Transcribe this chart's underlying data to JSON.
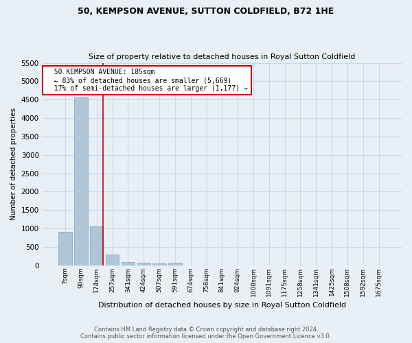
{
  "title": "50, KEMPSON AVENUE, SUTTON COLDFIELD, B72 1HE",
  "subtitle": "Size of property relative to detached houses in Royal Sutton Coldfield",
  "xlabel": "Distribution of detached houses by size in Royal Sutton Coldfield",
  "ylabel": "Number of detached properties",
  "footer_line1": "Contains HM Land Registry data © Crown copyright and database right 2024.",
  "footer_line2": "Contains public sector information licensed under the Open Government Licence v3.0.",
  "bar_labels": [
    "7sqm",
    "90sqm",
    "174sqm",
    "257sqm",
    "341sqm",
    "424sqm",
    "507sqm",
    "591sqm",
    "674sqm",
    "758sqm",
    "841sqm",
    "924sqm",
    "1008sqm",
    "1091sqm",
    "1175sqm",
    "1258sqm",
    "1341sqm",
    "1425sqm",
    "1508sqm",
    "1592sqm",
    "1675sqm"
  ],
  "bar_values": [
    900,
    4560,
    1060,
    300,
    95,
    70,
    60,
    75,
    0,
    0,
    0,
    0,
    0,
    0,
    0,
    0,
    0,
    0,
    0,
    0,
    0
  ],
  "bar_color": "#aec6d8",
  "bar_edge_color": "#8aafc5",
  "grid_color": "#c8d8e8",
  "bg_color": "#e8eff5",
  "annotation_text": "  50 KEMPSON AVENUE: 185sqm\n  ← 83% of detached houses are smaller (5,669)\n  17% of semi-detached houses are larger (1,177) →",
  "annotation_box_color": "#ffffff",
  "annotation_box_edge": "#cc0000",
  "vline_color": "#cc0000",
  "ylim": [
    0,
    5500
  ],
  "yticks": [
    0,
    500,
    1000,
    1500,
    2000,
    2500,
    3000,
    3500,
    4000,
    4500,
    5000,
    5500
  ]
}
